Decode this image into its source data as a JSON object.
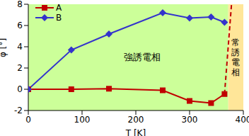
{
  "chart_data": {
    "type": "line",
    "xlabel": "T [K]",
    "ylabel": "φ [°]",
    "xlim": [
      0,
      400
    ],
    "xticks": [
      0,
      100,
      200,
      300,
      400
    ],
    "ylim": [
      -2,
      8
    ],
    "yticks": [
      -2,
      0,
      2,
      4,
      6,
      8
    ],
    "legend": "upper left",
    "series": [
      {
        "name": "A",
        "color": "#c00000",
        "marker": "square",
        "x": [
          0,
          80,
          150,
          250,
          300,
          340,
          365
        ],
        "values": [
          0,
          0,
          0.05,
          -0.1,
          -1.1,
          -1.3,
          -0.45
        ]
      },
      {
        "name": "B",
        "color": "#3333cc",
        "marker": "diamond",
        "x": [
          0,
          80,
          150,
          250,
          300,
          340,
          365
        ],
        "values": [
          0,
          3.7,
          5.2,
          7.2,
          6.7,
          6.8,
          6.3
        ]
      }
    ],
    "phase_boundary": {
      "x": [
        365,
        378
      ],
      "y": [
        -0.45,
        8
      ],
      "color": "#c00000",
      "line_style": "dashed"
    },
    "regions": [
      {
        "label": "強誘電相",
        "x": [
          0,
          372
        ],
        "color": "#ccff99"
      },
      {
        "label": "常誘電相",
        "x": [
          372,
          400
        ],
        "color": "#ffe699"
      }
    ]
  }
}
